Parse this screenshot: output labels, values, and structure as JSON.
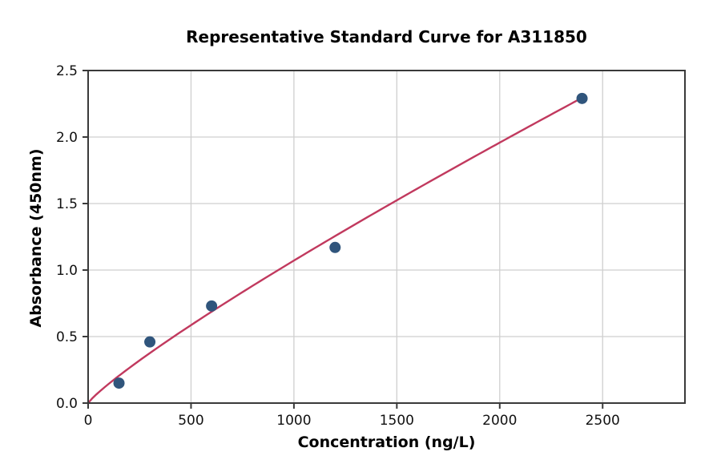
{
  "chart_data": {
    "type": "scatter",
    "title": "Representative Standard Curve for A311850",
    "xlabel": "Concentration (ng/L)",
    "ylabel": "Absorbance (450nm)",
    "xlim": [
      0,
      2900
    ],
    "ylim": [
      0,
      2.5
    ],
    "xticks": [
      0,
      500,
      1000,
      1500,
      2000,
      2500
    ],
    "xtick_labels": [
      "0",
      "500",
      "1000",
      "1500",
      "2000",
      "2500"
    ],
    "yticks": [
      0.0,
      0.5,
      1.0,
      1.5,
      2.0,
      2.5
    ],
    "ytick_labels": [
      "0.0",
      "0.5",
      "1.0",
      "1.5",
      "2.0",
      "2.5"
    ],
    "grid": true,
    "legend": "none",
    "points": {
      "x": [
        150,
        300,
        600,
        1200,
        2400
      ],
      "y": [
        0.15,
        0.46,
        0.73,
        1.17,
        2.29
      ]
    },
    "fit_curve": {
      "type": "power",
      "a": 0.00263,
      "b": 0.87,
      "x_range": [
        0,
        2400
      ]
    },
    "colors": {
      "point": "#30557c",
      "line": "#c1395e",
      "grid": "#cfcfcf",
      "spine": "#3a3a3a",
      "tick_text": "#111111",
      "background": "#ffffff"
    }
  }
}
